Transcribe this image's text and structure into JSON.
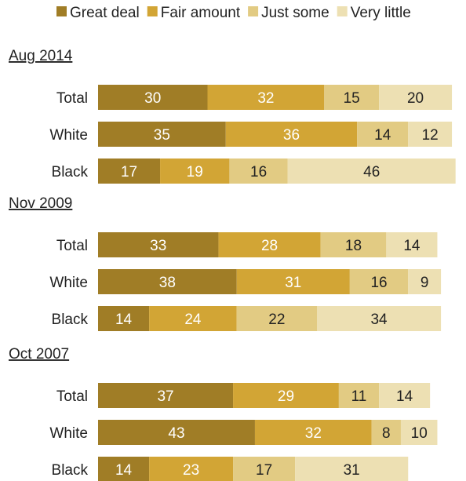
{
  "chart_data": {
    "type": "bar",
    "orientation": "horizontal",
    "stacked": true,
    "legend": {
      "placement": "top",
      "entries": [
        "Great deal",
        "Fair amount",
        "Just some",
        "Very little"
      ]
    },
    "colors": {
      "Great deal": "#a07d26",
      "Fair amount": "#d2a535",
      "Just some": "#e2cb83",
      "Very little": "#ede0b3"
    },
    "series_names": [
      "Great deal",
      "Fair amount",
      "Just some",
      "Very little"
    ],
    "groups": [
      {
        "label": "Aug 2014",
        "rows": [
          {
            "category": "Total",
            "values": [
              30,
              32,
              15,
              20
            ]
          },
          {
            "category": "White",
            "values": [
              35,
              36,
              14,
              12
            ]
          },
          {
            "category": "Black",
            "values": [
              17,
              19,
              16,
              46
            ]
          }
        ]
      },
      {
        "label": "Nov 2009",
        "rows": [
          {
            "category": "Total",
            "values": [
              33,
              28,
              18,
              14
            ]
          },
          {
            "category": "White",
            "values": [
              38,
              31,
              16,
              9
            ]
          },
          {
            "category": "Black",
            "values": [
              14,
              24,
              22,
              34
            ]
          }
        ]
      },
      {
        "label": "Oct 2007",
        "rows": [
          {
            "category": "Total",
            "values": [
              37,
              29,
              11,
              14
            ]
          },
          {
            "category": "White",
            "values": [
              43,
              32,
              8,
              10
            ]
          },
          {
            "category": "Black",
            "values": [
              14,
              23,
              17,
              31
            ]
          }
        ]
      }
    ],
    "xlim": [
      0,
      100
    ],
    "grid": false
  }
}
